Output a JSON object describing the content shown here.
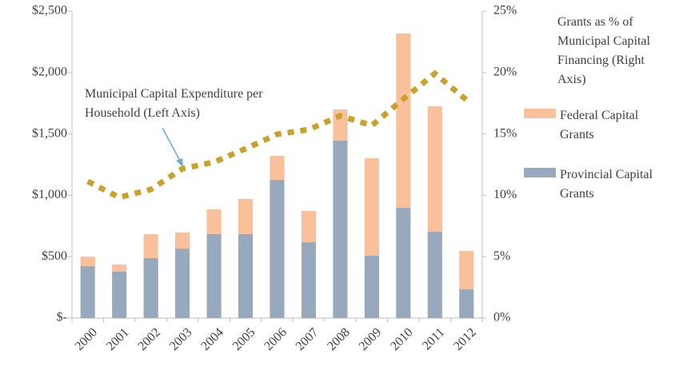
{
  "chart_data": {
    "type": "bar",
    "categories": [
      "2000",
      "2001",
      "2002",
      "2003",
      "2004",
      "2005",
      "2006",
      "2007",
      "2008",
      "2009",
      "2010",
      "2011",
      "2012"
    ],
    "stacked": true,
    "series": [
      {
        "name": "Provincial Capital Grants",
        "type": "bar",
        "color": "#98a9bd",
        "values": [
          423,
          378,
          488,
          566,
          684,
          684,
          1126,
          618,
          1445,
          508,
          898,
          703,
          234
        ]
      },
      {
        "name": "Federal Capital Grants",
        "type": "bar",
        "color": "#f9c09b",
        "values": [
          77,
          58,
          196,
          131,
          201,
          286,
          196,
          254,
          254,
          794,
          1420,
          1022,
          313
        ]
      },
      {
        "name": "Municipal Capital Expenditure per Household (Left Axis)",
        "type": "line",
        "color": "#c9a22c",
        "values": [
          1113,
          983,
          1048,
          1217,
          1270,
          1380,
          1497,
          1536,
          1647,
          1569,
          1784,
          1992,
          1777
        ]
      }
    ],
    "ylim": [
      0,
      2500
    ],
    "yticks": [
      {
        "value": 0,
        "label": "$-"
      },
      {
        "value": 500,
        "label": "$500"
      },
      {
        "value": 1000,
        "label": "$1,000"
      },
      {
        "value": 1500,
        "label": "$1,500"
      },
      {
        "value": 2000,
        "label": "$2,000"
      },
      {
        "value": 2500,
        "label": "$2,500"
      }
    ],
    "y2lim": [
      0,
      25
    ],
    "y2ticks": [
      {
        "value": 0,
        "label": "0%"
      },
      {
        "value": 5,
        "label": "5%"
      },
      {
        "value": 10,
        "label": "10%"
      },
      {
        "value": 15,
        "label": "15%"
      },
      {
        "value": 20,
        "label": "20%"
      },
      {
        "value": 25,
        "label": "25%"
      }
    ],
    "annotations": [
      "Grants as % of Municipal Capital Financing (Right Axis)"
    ],
    "legend": "right"
  }
}
